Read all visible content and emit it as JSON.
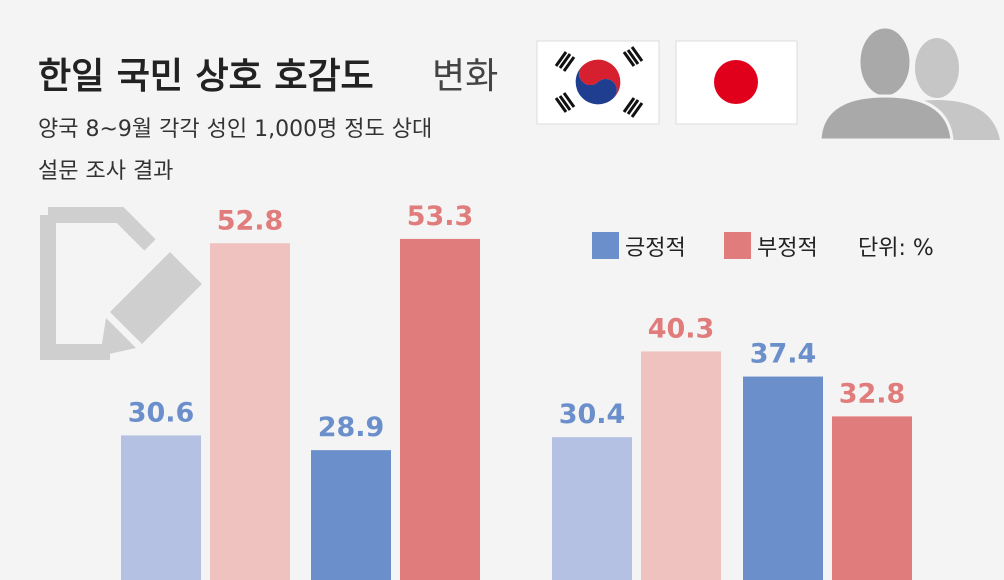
{
  "chart_data": {
    "type": "bar",
    "title": "한일 국민 상호 호감도",
    "title_suffix": "변화",
    "subtitle": [
      "양국 8~9월 각각 성인 1,000명 정도 상대",
      "설문 조사 결과"
    ],
    "unit_note": "단위: %",
    "categories": [
      null,
      null,
      null,
      null
    ],
    "series": [
      {
        "name": "긍정적",
        "color": "#6a8fcb",
        "colors": [
          "#b4c1e2",
          "#6a8fcb",
          "#b4c1e2",
          "#6a8fcb"
        ],
        "values": [
          30.6,
          28.9,
          30.4,
          37.4
        ]
      },
      {
        "name": "부정적",
        "color": "#e07c7c",
        "colors": [
          "#efc1bf",
          "#e07c7c",
          "#efc1bf",
          "#e07c7c"
        ],
        "values": [
          52.8,
          53.3,
          40.3,
          32.8
        ]
      }
    ],
    "ylim": [
      13.9,
      80.9
    ]
  }
}
